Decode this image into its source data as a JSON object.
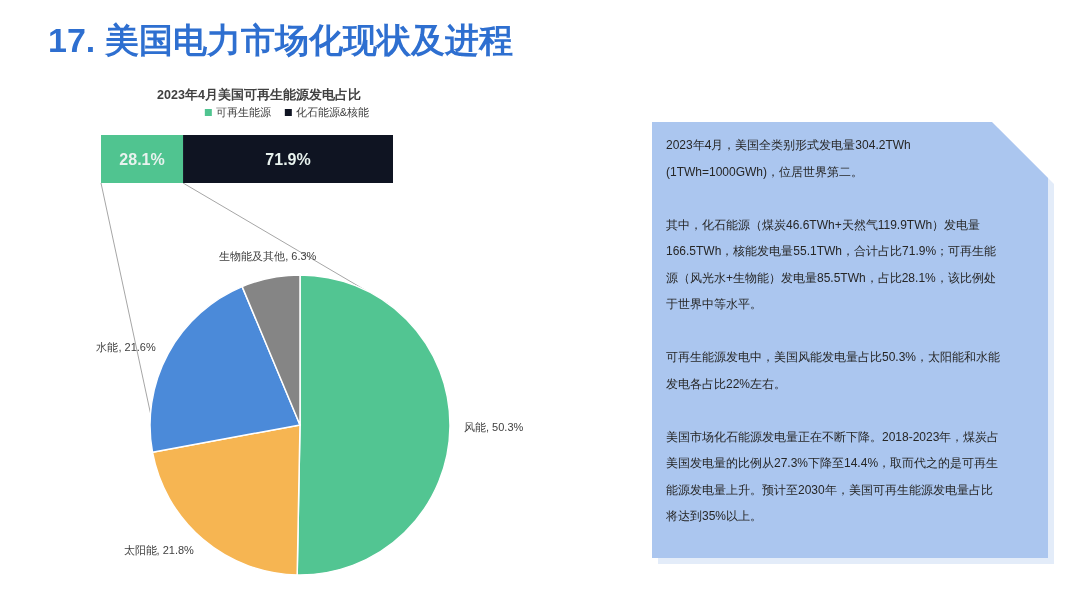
{
  "chart_data": [
    {
      "type": "other",
      "title": "17. 美国电力市场化现状及进程"
    },
    {
      "type": "bar",
      "orientation": "horizontal",
      "stacked": true,
      "title": "2023年4月美国可再生能源发电占比",
      "categories": [
        null
      ],
      "series": [
        {
          "name": "可再生能源",
          "color": "#50c490",
          "values": [
            28.1
          ],
          "value_labels": [
            "28.1%"
          ]
        },
        {
          "name": "化石能源&核能",
          "color": "#0f1422",
          "values": [
            71.9
          ],
          "value_labels": [
            "71.9%"
          ]
        }
      ],
      "legend": "top"
    },
    {
      "type": "pie",
      "categories": [
        "风能",
        "太阳能",
        "水能",
        "生物能及其他"
      ],
      "values": [
        50.3,
        21.8,
        21.6,
        6.3
      ],
      "colors": [
        "#52c592",
        "#f6b552",
        "#4b8ad9",
        "#858585"
      ],
      "value_labels": [
        "50.3%",
        "21.8%",
        "21.6%",
        "6.3%"
      ]
    },
    {
      "type": "other",
      "annotations": [
        "2023年4月，美国全类别形式发电量304.2TWh (1TWh=1000GWh)，位居世界第二。",
        "其中，化石能源（煤炭46.6TWh+天然气119.9TWh）发电量166.5TWh，核能发电量55.1TWh，合计占比71.9%；可再生能源（风光水+生物能）发电量85.5TWh，占比28.1%，该比例处于世界中等水平。",
        "可再生能源发电中，美国风能发电量占比50.3%，太阳能和水能发电各占比22%左右。",
        "美国市场化石能源发电量正在不断下降。2018-2023年，煤炭占美国发电量的比例从27.3%下降至14.4%，取而代之的是可再生能源发电量上升。预计至2030年，美国可再生能源发电量占比将达到35%以上。"
      ]
    }
  ]
}
